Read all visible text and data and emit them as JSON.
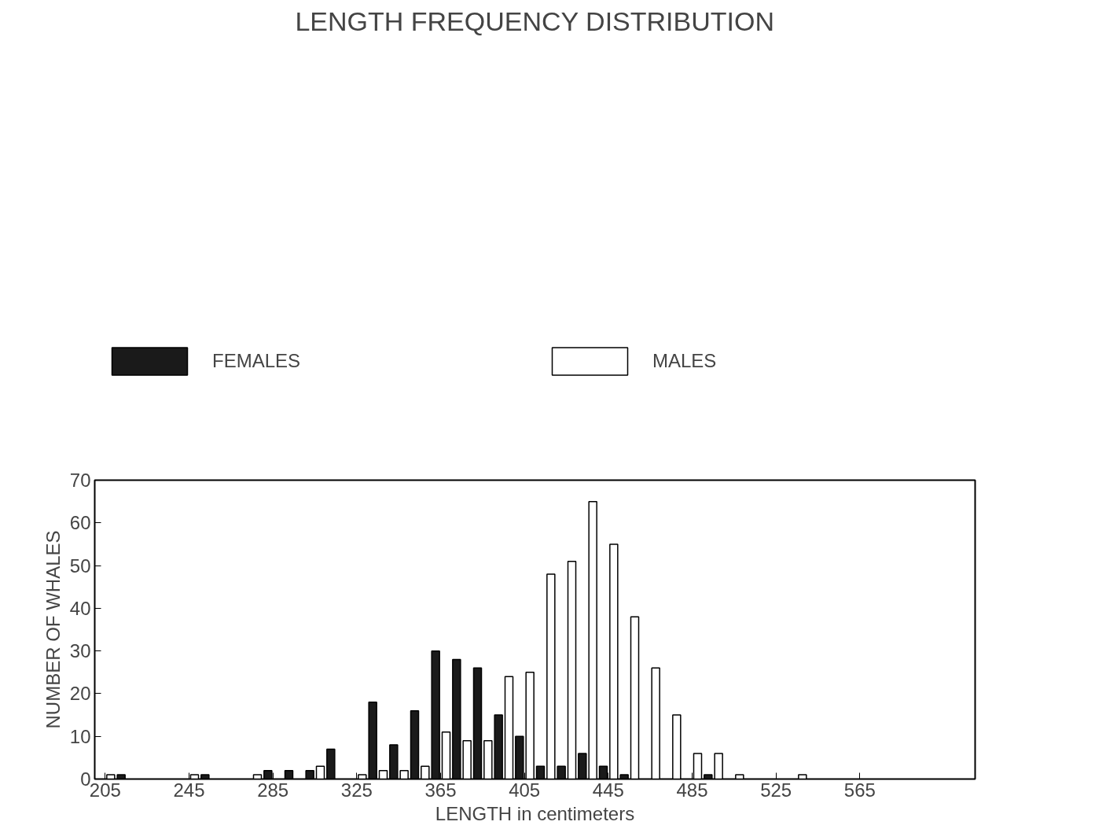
{
  "chart_data": {
    "type": "histogram",
    "title": "LENGTH FREQUENCY DISTRIBUTION",
    "xlabel": "LENGTH in centimeters",
    "ylabel": "NUMBER OF WHALES",
    "bins": [
      200,
      210,
      220,
      230,
      240,
      250,
      260,
      270,
      280,
      290,
      300,
      310,
      320,
      330,
      340,
      350,
      360,
      370,
      380,
      390,
      400,
      410,
      420,
      430,
      440,
      450,
      460,
      470,
      480,
      490,
      500,
      510,
      520,
      530,
      540,
      550,
      560,
      570,
      580,
      590,
      600,
      610,
      620
    ],
    "series": [
      {
        "name": "FEMALES",
        "color": "#1a1a1a",
        "values": [
          0,
          1,
          0,
          0,
          0,
          1,
          0,
          0,
          2,
          2,
          2,
          7,
          0,
          18,
          8,
          16,
          30,
          28,
          26,
          15,
          10,
          3,
          3,
          6,
          3,
          1,
          0,
          0,
          0,
          1,
          0,
          0,
          0,
          0,
          0,
          0,
          0,
          0,
          0,
          0,
          0,
          0
        ]
      },
      {
        "name": "MALES",
        "color": "#ffffff",
        "values": [
          1,
          0,
          0,
          0,
          1,
          0,
          0,
          1,
          0,
          0,
          3,
          0,
          1,
          2,
          2,
          3,
          11,
          9,
          9,
          24,
          25,
          48,
          51,
          65,
          55,
          38,
          26,
          15,
          6,
          6,
          1,
          0,
          0,
          1,
          0,
          0,
          0,
          0,
          0,
          0,
          0,
          0
        ]
      }
    ],
    "xlim": [
      200,
      620
    ],
    "ylim": [
      0,
      70
    ],
    "xticks": [
      {
        "value": 205,
        "label": "205"
      },
      {
        "value": 245,
        "label": "245"
      },
      {
        "value": 285,
        "label": "285"
      },
      {
        "value": 325,
        "label": "325"
      },
      {
        "value": 365,
        "label": "365"
      },
      {
        "value": 405,
        "label": "405"
      },
      {
        "value": 445,
        "label": "445"
      },
      {
        "value": 485,
        "label": "485"
      },
      {
        "value": 525,
        "label": "525"
      },
      {
        "value": 565,
        "label": "565"
      }
    ],
    "yticks": [
      0,
      10,
      20,
      30,
      40,
      50,
      60,
      70
    ],
    "grid": false,
    "legend": "top"
  }
}
